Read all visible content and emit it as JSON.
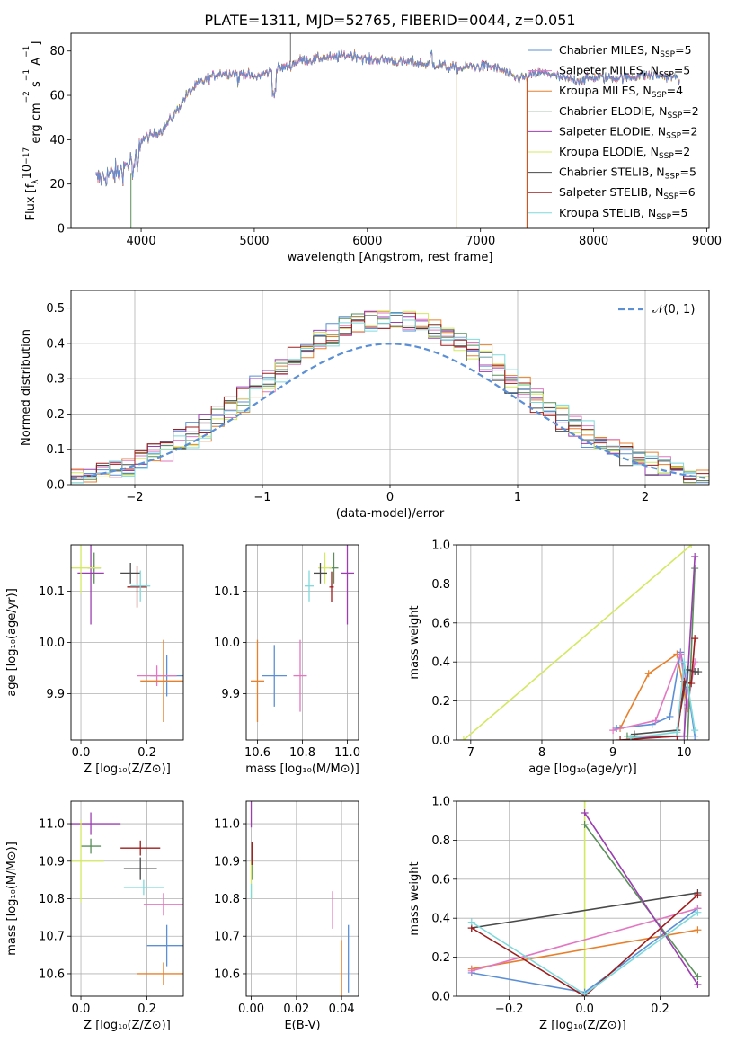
{
  "title": "PLATE=1311, MJD=52765, FIBERID=0044, z=0.051",
  "colors": {
    "chabrier_miles": "#5b8fd6",
    "salpeter_miles": "#e377c2",
    "kroupa_miles": "#e8802b",
    "chabrier_elodie": "#5a8f5a",
    "salpeter_elodie": "#9b3fb0",
    "kroupa_elodie": "#d4e862",
    "chabrier_stelib": "#4a4a4a",
    "salpeter_stelib": "#9e1d1d",
    "kroupa_stelib": "#7fd9dc",
    "normal_curve": "#5b8fd6",
    "grid": "#b0b0b0"
  },
  "chart_data": [
    {
      "id": "spectrum",
      "type": "line",
      "title": "PLATE=1311, MJD=52765, FIBERID=0044, z=0.051",
      "xlabel": "wavelength [Angstrom, rest frame]",
      "ylabel_parts": [
        "Flux [f",
        "λ",
        "10",
        "−17",
        " erg cm",
        "−2",
        " s",
        "−1",
        " A",
        "−1",
        "]"
      ],
      "xlim": [
        3380,
        9020
      ],
      "ylim": [
        0,
        88
      ],
      "xticks": [
        4000,
        5000,
        6000,
        7000,
        8000,
        9000
      ],
      "yticks": [
        0,
        20,
        40,
        60,
        80
      ],
      "continuum_knots": [
        [
          3600,
          22
        ],
        [
          3700,
          24
        ],
        [
          3800,
          25
        ],
        [
          3900,
          30
        ],
        [
          3950,
          33
        ],
        [
          4000,
          40
        ],
        [
          4100,
          42
        ],
        [
          4200,
          45
        ],
        [
          4300,
          52
        ],
        [
          4400,
          60
        ],
        [
          4500,
          65
        ],
        [
          4600,
          68
        ],
        [
          4700,
          70
        ],
        [
          4800,
          70
        ],
        [
          4900,
          70
        ],
        [
          5000,
          68
        ],
        [
          5100,
          70
        ],
        [
          5200,
          72
        ],
        [
          5300,
          73
        ],
        [
          5400,
          76
        ],
        [
          5500,
          76
        ],
        [
          5600,
          77
        ],
        [
          5700,
          77
        ],
        [
          5800,
          78
        ],
        [
          5900,
          78
        ],
        [
          6000,
          76
        ],
        [
          6100,
          76
        ],
        [
          6200,
          76
        ],
        [
          6300,
          75
        ],
        [
          6400,
          75
        ],
        [
          6500,
          74
        ],
        [
          6600,
          74
        ],
        [
          6700,
          73
        ],
        [
          6800,
          72
        ],
        [
          6900,
          73
        ],
        [
          7000,
          73
        ],
        [
          7100,
          73
        ],
        [
          7200,
          71
        ],
        [
          7300,
          68
        ],
        [
          7400,
          68
        ],
        [
          7500,
          70
        ],
        [
          7600,
          70
        ],
        [
          7700,
          68
        ],
        [
          7800,
          67
        ],
        [
          7900,
          67
        ],
        [
          8000,
          68
        ],
        [
          8100,
          68
        ],
        [
          8200,
          68
        ],
        [
          8300,
          68
        ],
        [
          8400,
          69
        ],
        [
          8500,
          69
        ],
        [
          8600,
          69
        ],
        [
          8700,
          68
        ],
        [
          8760,
          68
        ]
      ],
      "legend": [
        {
          "label": "Chabrier MILES, N",
          "sub": "SSP",
          "suffix": "=5",
          "color": "#5b8fd6"
        },
        {
          "label": "Salpeter MILES, N",
          "sub": "SSP",
          "suffix": "=5",
          "color": "#e377c2"
        },
        {
          "label": "Kroupa MILES, N",
          "sub": "SSP",
          "suffix": "=4",
          "color": "#e8802b"
        },
        {
          "label": "Chabrier ELODIE, N",
          "sub": "SSP",
          "suffix": "=2",
          "color": "#5a8f5a"
        },
        {
          "label": "Salpeter ELODIE, N",
          "sub": "SSP",
          "suffix": "=2",
          "color": "#9b3fb0"
        },
        {
          "label": "Kroupa ELODIE, N",
          "sub": "SSP",
          "suffix": "=2",
          "color": "#d4e862"
        },
        {
          "label": "Chabrier STELIB, N",
          "sub": "SSP",
          "suffix": "=5",
          "color": "#4a4a4a"
        },
        {
          "label": "Salpeter STELIB, N",
          "sub": "SSP",
          "suffix": "=6",
          "color": "#9e1d1d"
        },
        {
          "label": "Kroupa STELIB, N",
          "sub": "SSP",
          "suffix": "=5",
          "color": "#7fd9dc"
        }
      ]
    },
    {
      "id": "residuals",
      "type": "histogram",
      "xlabel": "(data-model)/error",
      "ylabel": "Normed distribution",
      "xlim": [
        -2.5,
        2.5
      ],
      "ylim": [
        0,
        0.55
      ],
      "xticks": [
        -2,
        -1,
        0,
        1,
        2
      ],
      "yticks": [
        0.0,
        0.1,
        0.2,
        0.3,
        0.4,
        0.5
      ],
      "legend": "𝒩(0, 1)",
      "bin_width": 0.1
    },
    {
      "id": "age_vs_Z",
      "type": "errorbar",
      "xlabel": "Z [log₁₀(Z/Z⊙)]",
      "ylabel": "age  [log₁₀(age/yr)]",
      "xlim": [
        -0.03,
        0.31
      ],
      "ylim": [
        9.81,
        10.19
      ],
      "xticks": [
        0.0,
        0.2
      ],
      "yticks": [
        9.9,
        10.0,
        10.1
      ],
      "points": [
        {
          "c": "#5b8fd6",
          "x": 0.26,
          "y": 9.935,
          "ex": 0.05,
          "ey": 0.04
        },
        {
          "c": "#e377c2",
          "x": 0.23,
          "y": 9.935,
          "ex": 0.06,
          "ey": 0.02
        },
        {
          "c": "#e8802b",
          "x": 0.25,
          "y": 9.925,
          "ex": 0.07,
          "ey": 0.08
        },
        {
          "c": "#5a8f5a",
          "x": 0.04,
          "y": 10.145,
          "ex": 0.02,
          "ey": 0.03
        },
        {
          "c": "#9b3fb0",
          "x": 0.03,
          "y": 10.135,
          "ex": 0.04,
          "ey": 0.1
        },
        {
          "c": "#d4e862",
          "x": 0.0,
          "y": 10.145,
          "ex": 0.06,
          "ey": 0.05
        },
        {
          "c": "#4a4a4a",
          "x": 0.15,
          "y": 10.135,
          "ex": 0.03,
          "ey": 0.02
        },
        {
          "c": "#9e1d1d",
          "x": 0.17,
          "y": 10.108,
          "ex": 0.03,
          "ey": 0.04
        },
        {
          "c": "#7fd9dc",
          "x": 0.18,
          "y": 10.11,
          "ex": 0.03,
          "ey": 0.03
        }
      ]
    },
    {
      "id": "age_vs_mass",
      "type": "errorbar",
      "xlabel": "mass [log₁₀(M/M⊙)]",
      "xlim": [
        10.55,
        11.05
      ],
      "ylim": [
        9.81,
        10.19
      ],
      "xticks": [
        10.6,
        10.8,
        11.0
      ],
      "yticks": [
        9.9,
        10.0,
        10.1
      ],
      "points": [
        {
          "c": "#5b8fd6",
          "x": 10.675,
          "y": 9.935,
          "ex": 0.055,
          "ey": 0.06
        },
        {
          "c": "#e377c2",
          "x": 10.79,
          "y": 9.935,
          "ex": 0.03,
          "ey": 0.07
        },
        {
          "c": "#e8802b",
          "x": 10.6,
          "y": 9.925,
          "ex": 0.03,
          "ey": 0.08
        },
        {
          "c": "#5a8f5a",
          "x": 10.94,
          "y": 10.145,
          "ex": 0.02,
          "ey": 0.03
        },
        {
          "c": "#9b3fb0",
          "x": 11.0,
          "y": 10.135,
          "ex": 0.03,
          "ey": 0.1
        },
        {
          "c": "#d4e862",
          "x": 10.9,
          "y": 10.145,
          "ex": 0.03,
          "ey": 0.03
        },
        {
          "c": "#4a4a4a",
          "x": 10.88,
          "y": 10.135,
          "ex": 0.03,
          "ey": 0.02
        },
        {
          "c": "#9e1d1d",
          "x": 10.93,
          "y": 10.108,
          "ex": 0.01,
          "ey": 0.03
        },
        {
          "c": "#7fd9dc",
          "x": 10.83,
          "y": 10.11,
          "ex": 0.02,
          "ey": 0.03
        }
      ]
    },
    {
      "id": "weight_vs_age",
      "type": "line",
      "xlabel": "age  [log₁₀(age/yr)]",
      "ylabel": "mass weight",
      "xlim": [
        6.8,
        10.35
      ],
      "ylim": [
        0,
        1.0
      ],
      "xticks": [
        7,
        8,
        9,
        10
      ],
      "yticks": [
        0.0,
        0.2,
        0.4,
        0.6,
        0.8,
        1.0
      ],
      "series": [
        {
          "c": "#d4e862",
          "pts": [
            [
              6.9,
              0.0
            ],
            [
              10.1,
              1.0
            ]
          ]
        },
        {
          "c": "#e8802b",
          "pts": [
            [
              9.1,
              0.06
            ],
            [
              9.5,
              0.34
            ],
            [
              9.9,
              0.44
            ],
            [
              10.05,
              0.16
            ]
          ]
        },
        {
          "c": "#5b8fd6",
          "pts": [
            [
              9.05,
              0.06
            ],
            [
              9.55,
              0.08
            ],
            [
              9.8,
              0.12
            ],
            [
              9.95,
              0.45
            ],
            [
              10.05,
              0.27
            ],
            [
              10.15,
              0.02
            ]
          ]
        },
        {
          "c": "#e377c2",
          "pts": [
            [
              9.0,
              0.05
            ],
            [
              9.6,
              0.1
            ],
            [
              9.95,
              0.44
            ],
            [
              10.05,
              0.18
            ],
            [
              10.15,
              0.4
            ]
          ]
        },
        {
          "c": "#5a8f5a",
          "pts": [
            [
              9.2,
              0.02
            ],
            [
              10.05,
              0.02
            ],
            [
              10.15,
              0.88
            ]
          ]
        },
        {
          "c": "#9b3fb0",
          "pts": [
            [
              9.3,
              0.01
            ],
            [
              10.0,
              0.02
            ],
            [
              10.15,
              0.94
            ]
          ]
        },
        {
          "c": "#4a4a4a",
          "pts": [
            [
              9.3,
              0.03
            ],
            [
              9.9,
              0.05
            ],
            [
              10.05,
              0.36
            ],
            [
              10.15,
              0.35
            ],
            [
              10.2,
              0.35
            ]
          ]
        },
        {
          "c": "#9e1d1d",
          "pts": [
            [
              9.1,
              0.0
            ],
            [
              9.9,
              0.02
            ],
            [
              10.0,
              0.3
            ],
            [
              10.1,
              0.29
            ],
            [
              10.15,
              0.52
            ]
          ]
        },
        {
          "c": "#7fd9dc",
          "pts": [
            [
              9.25,
              0.01
            ],
            [
              9.9,
              0.04
            ],
            [
              10.0,
              0.4
            ],
            [
              10.15,
              0.05
            ]
          ]
        }
      ]
    },
    {
      "id": "mass_vs_Z",
      "type": "errorbar",
      "xlabel": "Z [log₁₀(Z/Z⊙)]",
      "ylabel": "mass [log₁₀(M/M⊙)]",
      "xlim": [
        -0.03,
        0.31
      ],
      "ylim": [
        10.54,
        11.06
      ],
      "xticks": [
        0.0,
        0.2
      ],
      "yticks": [
        10.6,
        10.7,
        10.8,
        10.9,
        11.0
      ],
      "points": [
        {
          "c": "#5b8fd6",
          "x": 0.26,
          "y": 10.675,
          "ex": 0.06,
          "ey": 0.055
        },
        {
          "c": "#e377c2",
          "x": 0.25,
          "y": 10.785,
          "ex": 0.06,
          "ey": 0.03
        },
        {
          "c": "#e8802b",
          "x": 0.25,
          "y": 10.6,
          "ex": 0.08,
          "ey": 0.03
        },
        {
          "c": "#5a8f5a",
          "x": 0.03,
          "y": 10.94,
          "ex": 0.03,
          "ey": 0.02
        },
        {
          "c": "#9b3fb0",
          "x": 0.03,
          "y": 11.0,
          "ex": 0.09,
          "ey": 0.03
        },
        {
          "c": "#d4e862",
          "x": 0.0,
          "y": 10.9,
          "ex": 0.07,
          "ey": 0.11
        },
        {
          "c": "#4a4a4a",
          "x": 0.18,
          "y": 10.88,
          "ex": 0.05,
          "ey": 0.03
        },
        {
          "c": "#9e1d1d",
          "x": 0.18,
          "y": 10.935,
          "ex": 0.06,
          "ey": 0.02
        },
        {
          "c": "#7fd9dc",
          "x": 0.19,
          "y": 10.83,
          "ex": 0.06,
          "ey": 0.02
        }
      ]
    },
    {
      "id": "mass_vs_ebv",
      "type": "errorbar",
      "xlabel": "E(B-V)",
      "xlim": [
        -0.0022,
        0.0475
      ],
      "ylim": [
        10.54,
        11.06
      ],
      "xticks": [
        0.0,
        0.02,
        0.04
      ],
      "yticks": [
        10.6,
        10.7,
        10.8,
        10.9,
        11.0
      ],
      "points": [
        {
          "c": "#5b8fd6",
          "x": 0.043,
          "y": 10.64,
          "ex": 0.0,
          "ey": 0.09
        },
        {
          "c": "#e377c2",
          "x": 0.036,
          "y": 10.77,
          "ex": 0.0,
          "ey": 0.05
        },
        {
          "c": "#e8802b",
          "x": 0.04,
          "y": 10.6,
          "ex": 0.0,
          "ey": 0.09
        },
        {
          "c": "#5a8f5a",
          "x": 0.0003,
          "y": 10.9,
          "ex": 0.0,
          "ey": 0.05
        },
        {
          "c": "#9b3fb0",
          "x": 0.0,
          "y": 11.06,
          "ex": 0.0,
          "ey": 0.07
        },
        {
          "c": "#d4e862",
          "x": 0.0,
          "y": 10.85,
          "ex": 0.0,
          "ey": 0.05
        },
        {
          "c": "#9e1d1d",
          "x": 0.0003,
          "y": 10.92,
          "ex": 0.0,
          "ey": 0.03
        },
        {
          "c": "#7fd9dc",
          "x": 0.0,
          "y": 10.82,
          "ex": 0.0,
          "ey": 0.02
        }
      ]
    },
    {
      "id": "weight_vs_Z",
      "type": "line",
      "xlabel": "Z [log₁₀(Z/Z⊙)]",
      "ylabel": "mass weight",
      "xlim": [
        -0.34,
        0.33
      ],
      "ylim": [
        0,
        1.0
      ],
      "xticks": [
        -0.2,
        0.0,
        0.2
      ],
      "xticklabels": [
        "−0.2",
        "0.0",
        "0.2"
      ],
      "yticks": [
        0.0,
        0.2,
        0.4,
        0.6,
        0.8,
        1.0
      ],
      "series": [
        {
          "c": "#d4e862",
          "pts": [
            [
              0.0,
              1.0
            ],
            [
              0.0,
              0.0
            ]
          ]
        },
        {
          "c": "#4a4a4a",
          "pts": [
            [
              -0.3,
              0.35
            ],
            [
              0.3,
              0.53
            ]
          ]
        },
        {
          "c": "#e8802b",
          "pts": [
            [
              -0.3,
              0.14
            ],
            [
              0.3,
              0.34
            ]
          ]
        },
        {
          "c": "#5b8fd6",
          "pts": [
            [
              -0.3,
              0.12
            ],
            [
              0.0,
              0.02
            ],
            [
              0.3,
              0.45
            ]
          ]
        },
        {
          "c": "#e377c2",
          "pts": [
            [
              -0.3,
              0.13
            ],
            [
              0.3,
              0.45
            ]
          ]
        },
        {
          "c": "#5a8f5a",
          "pts": [
            [
              0.0,
              0.88
            ],
            [
              0.3,
              0.1
            ]
          ]
        },
        {
          "c": "#9b3fb0",
          "pts": [
            [
              0.0,
              0.94
            ],
            [
              0.3,
              0.06
            ]
          ]
        },
        {
          "c": "#9e1d1d",
          "pts": [
            [
              -0.3,
              0.35
            ],
            [
              0.0,
              0.0
            ],
            [
              0.3,
              0.52
            ]
          ]
        },
        {
          "c": "#7fd9dc",
          "pts": [
            [
              -0.3,
              0.38
            ],
            [
              0.0,
              0.01
            ],
            [
              0.3,
              0.43
            ]
          ]
        }
      ]
    }
  ]
}
